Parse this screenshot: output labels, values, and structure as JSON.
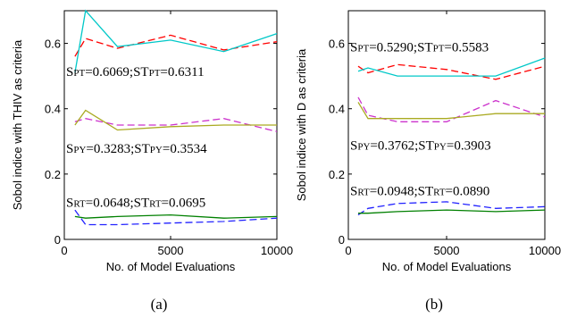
{
  "chart_data": [
    {
      "type": "line",
      "panel_label": "(a)",
      "xlabel": "No. of Model Evaluations",
      "ylabel": "Sobol indice with THIV as criteria",
      "xlim": [
        0,
        10000
      ],
      "ylim": [
        0,
        0.7
      ],
      "xticks": [
        0,
        5000,
        10000
      ],
      "yticks": [
        0,
        0.2,
        0.4,
        0.6
      ],
      "xtick_labels": [
        "0",
        "5000",
        "10000"
      ],
      "ytick_labels": [
        "0",
        "0.2",
        "0.4",
        "0.6"
      ],
      "grid": false,
      "x": [
        500,
        1000,
        2500,
        5000,
        7500,
        10000
      ],
      "series": [
        {
          "color": "#ff0000",
          "dash": "8,4",
          "values": [
            0.56,
            0.615,
            0.585,
            0.625,
            0.58,
            0.605
          ]
        },
        {
          "color": "#00c8c8",
          "dash": "",
          "values": [
            0.51,
            0.7,
            0.59,
            0.61,
            0.575,
            0.63
          ]
        },
        {
          "color": "#cc33cc",
          "dash": "8,4",
          "values": [
            0.36,
            0.37,
            0.35,
            0.35,
            0.37,
            0.33
          ]
        },
        {
          "color": "#aaaa22",
          "dash": "",
          "values": [
            0.35,
            0.395,
            0.335,
            0.345,
            0.35,
            0.35
          ]
        },
        {
          "color": "#2222ff",
          "dash": "8,4",
          "values": [
            0.09,
            0.045,
            0.045,
            0.05,
            0.055,
            0.065
          ]
        },
        {
          "color": "#008000",
          "dash": "",
          "values": [
            0.07,
            0.065,
            0.07,
            0.075,
            0.065,
            0.07
          ]
        }
      ],
      "annotations": [
        {
          "y": 0.5,
          "parts": [
            [
              "S",
              ""
            ],
            [
              "PT",
              "sub"
            ],
            [
              "=0.6069;ST",
              ""
            ],
            [
              "PT",
              "sub"
            ],
            [
              "=0.6311",
              ""
            ]
          ]
        },
        {
          "y": 0.265,
          "parts": [
            [
              "S",
              ""
            ],
            [
              "PY",
              "sub"
            ],
            [
              "=0.3283;ST",
              ""
            ],
            [
              "PY",
              "sub"
            ],
            [
              "=0.3534",
              ""
            ]
          ]
        },
        {
          "y": 0.1,
          "parts": [
            [
              "S",
              ""
            ],
            [
              "RT",
              "sub"
            ],
            [
              "=0.0648;ST",
              ""
            ],
            [
              "RT",
              "sub"
            ],
            [
              "=0.0695",
              ""
            ]
          ]
        }
      ]
    },
    {
      "type": "line",
      "panel_label": "(b)",
      "xlabel": "No. of Model Evaluations",
      "ylabel": "Sobol indice with D as criteria",
      "xlim": [
        0,
        10000
      ],
      "ylim": [
        0,
        0.7
      ],
      "xticks": [
        0,
        5000,
        10000
      ],
      "yticks": [
        0,
        0.2,
        0.4,
        0.6
      ],
      "xtick_labels": [
        "0",
        "5000",
        "10000"
      ],
      "ytick_labels": [
        "0",
        "0.2",
        "0.4",
        "0.6"
      ],
      "grid": false,
      "x": [
        500,
        1000,
        2500,
        5000,
        7500,
        10000
      ],
      "series": [
        {
          "color": "#ff0000",
          "dash": "8,4",
          "values": [
            0.53,
            0.51,
            0.535,
            0.52,
            0.49,
            0.53
          ]
        },
        {
          "color": "#00c8c8",
          "dash": "",
          "values": [
            0.515,
            0.525,
            0.5,
            0.5,
            0.5,
            0.555
          ]
        },
        {
          "color": "#cc33cc",
          "dash": "8,4",
          "values": [
            0.435,
            0.38,
            0.36,
            0.36,
            0.425,
            0.375
          ]
        },
        {
          "color": "#aaaa22",
          "dash": "",
          "values": [
            0.42,
            0.37,
            0.37,
            0.37,
            0.385,
            0.385
          ]
        },
        {
          "color": "#2222ff",
          "dash": "8,4",
          "values": [
            0.075,
            0.095,
            0.11,
            0.115,
            0.095,
            0.1
          ]
        },
        {
          "color": "#008000",
          "dash": "",
          "values": [
            0.08,
            0.08,
            0.085,
            0.09,
            0.085,
            0.09
          ]
        }
      ],
      "annotations": [
        {
          "y": 0.575,
          "parts": [
            [
              "S",
              ""
            ],
            [
              "PT",
              "sub"
            ],
            [
              "=0.5290;ST",
              ""
            ],
            [
              "PT",
              "sub"
            ],
            [
              "=0.5583",
              ""
            ]
          ]
        },
        {
          "y": 0.275,
          "parts": [
            [
              "S",
              ""
            ],
            [
              "PY",
              "sub"
            ],
            [
              "=0.3762;ST",
              ""
            ],
            [
              "PY",
              "sub"
            ],
            [
              "=0.3903",
              ""
            ]
          ]
        },
        {
          "y": 0.135,
          "parts": [
            [
              "S",
              ""
            ],
            [
              "RT",
              "sub"
            ],
            [
              "=0.0948;ST",
              ""
            ],
            [
              "RT",
              "sub"
            ],
            [
              "=0.0890",
              ""
            ]
          ]
        }
      ]
    }
  ]
}
